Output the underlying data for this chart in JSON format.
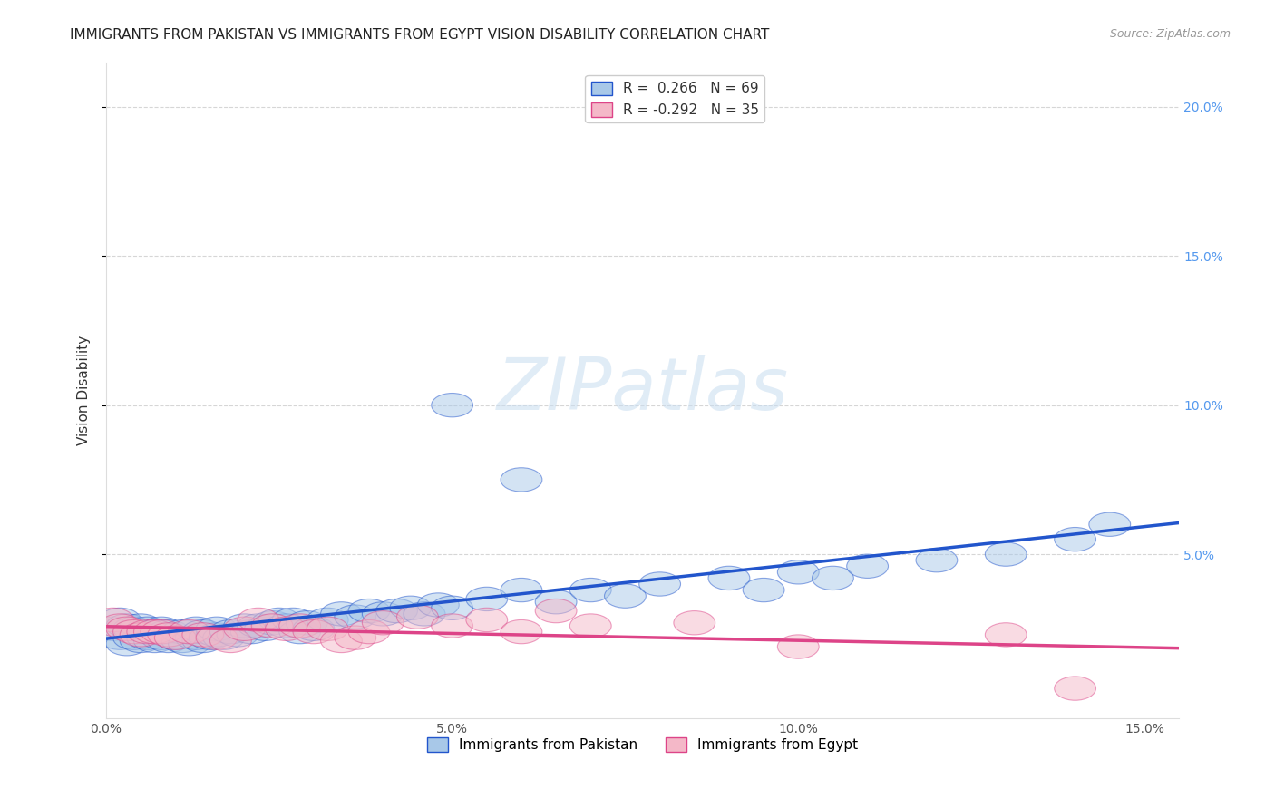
{
  "title": "IMMIGRANTS FROM PAKISTAN VS IMMIGRANTS FROM EGYPT VISION DISABILITY CORRELATION CHART",
  "source": "Source: ZipAtlas.com",
  "ylabel": "Vision Disability",
  "xlim": [
    0.0,
    0.155
  ],
  "ylim": [
    -0.005,
    0.215
  ],
  "pakistan_R": 0.266,
  "pakistan_N": 69,
  "egypt_R": -0.292,
  "egypt_N": 35,
  "pakistan_color": "#a8c8e8",
  "egypt_color": "#f4b8c8",
  "pakistan_line_color": "#2255cc",
  "egypt_line_color": "#dd4488",
  "background_color": "#ffffff",
  "grid_color": "#cccccc",
  "watermark_text": "ZIPatlas",
  "pakistan_x": [
    0.001,
    0.002,
    0.002,
    0.003,
    0.003,
    0.004,
    0.004,
    0.005,
    0.005,
    0.006,
    0.006,
    0.007,
    0.007,
    0.008,
    0.008,
    0.009,
    0.009,
    0.01,
    0.011,
    0.011,
    0.012,
    0.013,
    0.013,
    0.014,
    0.014,
    0.015,
    0.016,
    0.016,
    0.017,
    0.018,
    0.019,
    0.02,
    0.021,
    0.022,
    0.023,
    0.024,
    0.025,
    0.026,
    0.027,
    0.028,
    0.029,
    0.03,
    0.032,
    0.034,
    0.036,
    0.038,
    0.04,
    0.042,
    0.044,
    0.046,
    0.048,
    0.05,
    0.055,
    0.06,
    0.065,
    0.07,
    0.075,
    0.08,
    0.09,
    0.095,
    0.1,
    0.105,
    0.11,
    0.12,
    0.13,
    0.14,
    0.145,
    0.05,
    0.06
  ],
  "pakistan_y": [
    0.025,
    0.022,
    0.028,
    0.02,
    0.026,
    0.022,
    0.025,
    0.021,
    0.026,
    0.022,
    0.025,
    0.021,
    0.024,
    0.022,
    0.025,
    0.021,
    0.024,
    0.022,
    0.021,
    0.024,
    0.02,
    0.022,
    0.025,
    0.021,
    0.024,
    0.022,
    0.023,
    0.025,
    0.022,
    0.024,
    0.023,
    0.026,
    0.024,
    0.026,
    0.025,
    0.027,
    0.028,
    0.026,
    0.028,
    0.024,
    0.027,
    0.025,
    0.028,
    0.03,
    0.029,
    0.031,
    0.03,
    0.031,
    0.032,
    0.03,
    0.033,
    0.032,
    0.035,
    0.038,
    0.034,
    0.038,
    0.036,
    0.04,
    0.042,
    0.038,
    0.044,
    0.042,
    0.046,
    0.048,
    0.05,
    0.055,
    0.06,
    0.1,
    0.075
  ],
  "egypt_x": [
    0.001,
    0.002,
    0.003,
    0.004,
    0.005,
    0.006,
    0.007,
    0.008,
    0.009,
    0.01,
    0.012,
    0.014,
    0.016,
    0.018,
    0.02,
    0.022,
    0.024,
    0.026,
    0.028,
    0.03,
    0.032,
    0.034,
    0.036,
    0.038,
    0.04,
    0.045,
    0.05,
    0.055,
    0.06,
    0.065,
    0.07,
    0.085,
    0.1,
    0.13,
    0.14
  ],
  "egypt_y": [
    0.028,
    0.026,
    0.025,
    0.024,
    0.023,
    0.024,
    0.024,
    0.024,
    0.023,
    0.022,
    0.024,
    0.023,
    0.022,
    0.021,
    0.025,
    0.028,
    0.026,
    0.025,
    0.026,
    0.024,
    0.025,
    0.021,
    0.022,
    0.024,
    0.027,
    0.029,
    0.026,
    0.028,
    0.024,
    0.031,
    0.026,
    0.027,
    0.019,
    0.023,
    0.005
  ],
  "title_fontsize": 11,
  "axis_label_fontsize": 11,
  "tick_fontsize": 10,
  "legend_fontsize": 11
}
